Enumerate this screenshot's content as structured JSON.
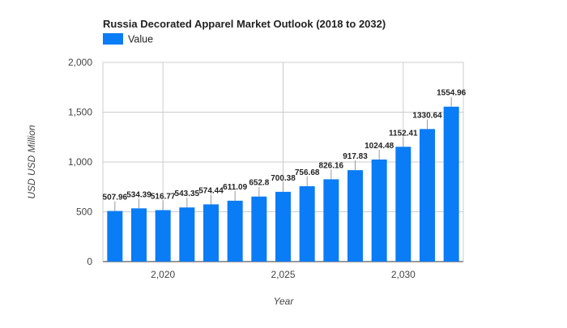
{
  "chart_data": {
    "type": "bar",
    "title": "Russia Decorated Apparel Market Outlook (2018 to 2032)",
    "xlabel": "Year",
    "ylabel": "USD USD Million",
    "x": [
      2018,
      2019,
      2020,
      2021,
      2022,
      2023,
      2024,
      2025,
      2026,
      2027,
      2028,
      2029,
      2030,
      2031,
      2032
    ],
    "series": [
      {
        "name": "Value",
        "values": [
          507.96,
          534.39,
          516.77,
          543.35,
          574.44,
          611.09,
          652.8,
          700.38,
          756.68,
          826.16,
          917.83,
          1024.48,
          1152.41,
          1330.64,
          1554.96
        ],
        "labels": [
          "507.96",
          "534.39",
          "516.77",
          "543.35",
          "574.44",
          "611.09",
          "652.8",
          "700.38",
          "756.68",
          "826.16",
          "917.83",
          "1024.48",
          "1152.41",
          "1330.64",
          "1554.96"
        ]
      }
    ],
    "ylim": [
      0,
      2000
    ],
    "yticks": [
      0,
      500,
      1000,
      1500,
      2000
    ],
    "ytick_labels": [
      "0",
      "500",
      "1,000",
      "1,500",
      "2,000"
    ],
    "xlim": [
      2017.5,
      2032.5
    ],
    "xticks": [
      2020,
      2025,
      2030
    ],
    "xtick_labels": [
      "2,020",
      "2,025",
      "2,030"
    ],
    "grid": true,
    "legend": {
      "position": "top-left"
    },
    "colors": {
      "bar": "#0a7cf5",
      "grid": "#cccccc",
      "text": "#444444",
      "title": "#222222"
    }
  }
}
